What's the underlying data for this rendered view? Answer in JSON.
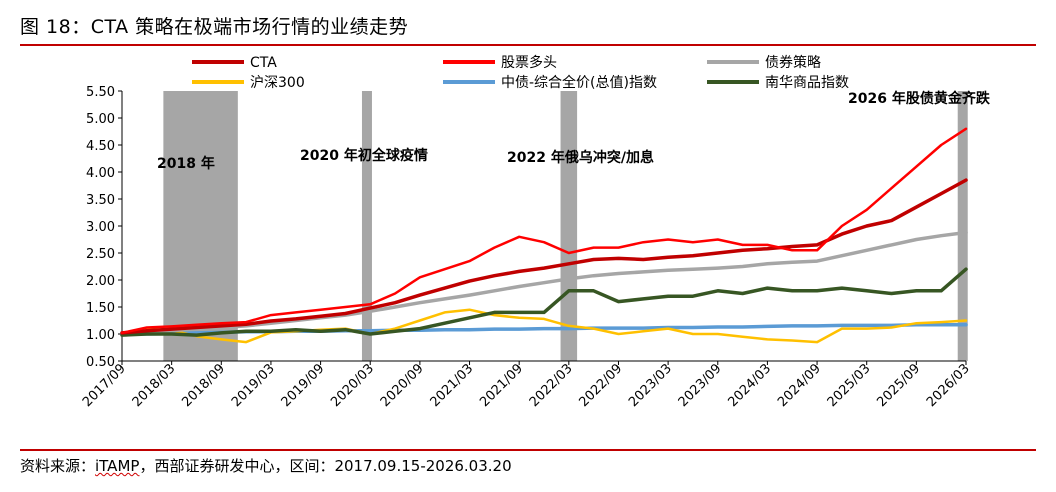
{
  "figure_title": "图 18：CTA 策略在极端市场行情的业绩走势",
  "source_note": {
    "prefix": "资料来源：",
    "name": "iTAMP",
    "suffix": "，西部证券研发中心，区间：2017.09.15-2026.03.20"
  },
  "chart_data": {
    "type": "line",
    "title": "",
    "xlabel": "",
    "ylabel": "",
    "ylim": [
      0.5,
      5.5
    ],
    "y_ticks": [
      "5.50",
      "5.00",
      "4.50",
      "4.00",
      "3.50",
      "3.00",
      "2.50",
      "2.00",
      "1.50",
      "1.00",
      "0.50"
    ],
    "x_ticks": [
      "2017/09",
      "2018/03",
      "2018/09",
      "2019/03",
      "2019/09",
      "2020/03",
      "2020/09",
      "2021/03",
      "2021/09",
      "2022/03",
      "2022/09",
      "2023/03",
      "2023/09",
      "2024/03",
      "2024/09",
      "2025/03",
      "2025/09",
      "2026/03"
    ],
    "grid": false,
    "legend_position": "top",
    "x_dates": [
      "2017/09",
      "2017/12",
      "2018/03",
      "2018/06",
      "2018/09",
      "2018/12",
      "2019/03",
      "2019/06",
      "2019/09",
      "2019/12",
      "2020/03",
      "2020/06",
      "2020/09",
      "2020/12",
      "2021/03",
      "2021/06",
      "2021/09",
      "2021/12",
      "2022/03",
      "2022/06",
      "2022/09",
      "2022/12",
      "2023/03",
      "2023/06",
      "2023/09",
      "2023/12",
      "2024/03",
      "2024/06",
      "2024/09",
      "2024/12",
      "2025/03",
      "2025/06",
      "2025/09",
      "2025/12",
      "2026/03"
    ],
    "series": [
      {
        "name": "CTA",
        "color": "#c00000",
        "width": 3.5,
        "values": [
          1.02,
          1.06,
          1.09,
          1.12,
          1.15,
          1.18,
          1.24,
          1.28,
          1.33,
          1.38,
          1.48,
          1.58,
          1.72,
          1.85,
          1.98,
          2.08,
          2.16,
          2.22,
          2.3,
          2.38,
          2.4,
          2.38,
          2.42,
          2.45,
          2.5,
          2.55,
          2.58,
          2.62,
          2.65,
          2.85,
          3.0,
          3.1,
          3.35,
          3.6,
          3.85
        ]
      },
      {
        "name": "股票多头",
        "color": "#ff0000",
        "width": 2.5,
        "values": [
          1.02,
          1.12,
          1.14,
          1.17,
          1.2,
          1.22,
          1.35,
          1.4,
          1.45,
          1.5,
          1.55,
          1.75,
          2.05,
          2.2,
          2.35,
          2.6,
          2.8,
          2.7,
          2.5,
          2.6,
          2.6,
          2.7,
          2.75,
          2.7,
          2.75,
          2.65,
          2.65,
          2.55,
          2.55,
          3.0,
          3.3,
          3.7,
          4.1,
          4.5,
          4.8
        ]
      },
      {
        "name": "债券策略",
        "color": "#a6a6a6",
        "width": 3.5,
        "values": [
          1.02,
          1.04,
          1.06,
          1.1,
          1.12,
          1.15,
          1.2,
          1.25,
          1.3,
          1.35,
          1.42,
          1.5,
          1.58,
          1.65,
          1.72,
          1.8,
          1.88,
          1.95,
          2.02,
          2.08,
          2.12,
          2.15,
          2.18,
          2.2,
          2.22,
          2.25,
          2.3,
          2.33,
          2.35,
          2.45,
          2.55,
          2.65,
          2.75,
          2.82,
          2.88
        ]
      },
      {
        "name": "沪深300",
        "color": "#ffc000",
        "width": 2.5,
        "values": [
          1.0,
          1.1,
          1.07,
          0.96,
          0.9,
          0.85,
          1.03,
          1.05,
          1.08,
          1.1,
          1.0,
          1.1,
          1.25,
          1.4,
          1.45,
          1.35,
          1.3,
          1.28,
          1.15,
          1.1,
          1.0,
          1.05,
          1.1,
          1.0,
          1.0,
          0.95,
          0.9,
          0.88,
          0.85,
          1.1,
          1.1,
          1.12,
          1.2,
          1.22,
          1.25
        ]
      },
      {
        "name": "中债-综合全价(总值)指数",
        "color": "#5b9bd5",
        "width": 3.5,
        "values": [
          1.0,
          1.0,
          1.01,
          1.02,
          1.03,
          1.04,
          1.04,
          1.05,
          1.05,
          1.06,
          1.06,
          1.07,
          1.07,
          1.08,
          1.08,
          1.09,
          1.09,
          1.1,
          1.1,
          1.11,
          1.11,
          1.11,
          1.12,
          1.12,
          1.13,
          1.13,
          1.14,
          1.15,
          1.15,
          1.16,
          1.16,
          1.16,
          1.17,
          1.17,
          1.17
        ]
      },
      {
        "name": "南华商品指数",
        "color": "#375623",
        "width": 3.5,
        "values": [
          0.98,
          1.0,
          1.0,
          0.98,
          1.02,
          1.05,
          1.05,
          1.08,
          1.05,
          1.08,
          1.0,
          1.05,
          1.1,
          1.2,
          1.3,
          1.4,
          1.4,
          1.4,
          1.8,
          1.8,
          1.6,
          1.65,
          1.7,
          1.7,
          1.8,
          1.75,
          1.85,
          1.8,
          1.8,
          1.85,
          1.8,
          1.75,
          1.8,
          1.8,
          2.2
        ]
      }
    ],
    "shaded_periods": [
      {
        "start": "2018/02",
        "end": "2018/11",
        "label": "2018 年"
      },
      {
        "start": "2020/02",
        "end": "2020/03",
        "label": "2020 年初全球疫情"
      },
      {
        "start": "2022/02",
        "end": "2022/04",
        "label": "2022 年俄乌冲突/加息"
      },
      {
        "start": "2026/02",
        "end": "2026/03",
        "label": "2026 年股债黄金齐跌"
      }
    ]
  }
}
